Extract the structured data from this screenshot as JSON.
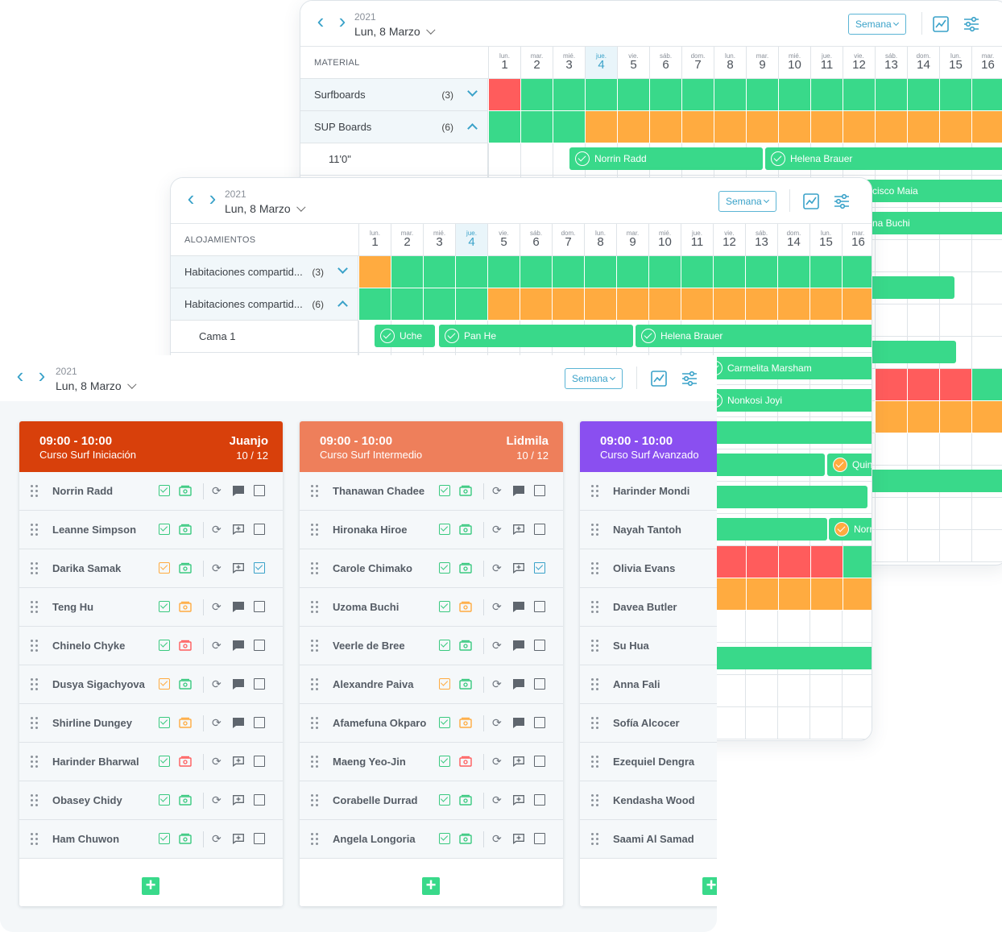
{
  "material_view": {
    "year": "2021",
    "date": "Lun, 8 Marzo",
    "view_select": "Semana",
    "section_title": "MATERIAL",
    "days": [
      {
        "dow": "lun.",
        "num": "1"
      },
      {
        "dow": "mar.",
        "num": "2"
      },
      {
        "dow": "mié.",
        "num": "3"
      },
      {
        "dow": "jue.",
        "num": "4"
      },
      {
        "dow": "vie.",
        "num": "5"
      },
      {
        "dow": "sáb.",
        "num": "6"
      },
      {
        "dow": "dom.",
        "num": "7"
      },
      {
        "dow": "lun.",
        "num": "8"
      },
      {
        "dow": "mar.",
        "num": "9"
      },
      {
        "dow": "mié.",
        "num": "10"
      },
      {
        "dow": "jue.",
        "num": "11"
      },
      {
        "dow": "vie.",
        "num": "12"
      },
      {
        "dow": "sáb.",
        "num": "13"
      },
      {
        "dow": "dom.",
        "num": "14"
      },
      {
        "dow": "lun.",
        "num": "15"
      },
      {
        "dow": "mar.",
        "num": "16"
      }
    ],
    "groups": [
      {
        "label": "Surfboards",
        "count": "(3)",
        "availability": "rggggggggggggggg"
      },
      {
        "label": "SUP Boards",
        "count": "(6)",
        "availability": "gggooooooooooooo"
      }
    ],
    "subrow_label": "11'0\"",
    "bookings": [
      "Norrin Radd",
      "Helena Brauer"
    ],
    "partial_labels": [
      "cisco Maia",
      "na Buchi"
    ]
  },
  "lodging_view": {
    "year": "2021",
    "date": "Lun, 8 Marzo",
    "view_select": "Semana",
    "section_title": "ALOJAMIENTOS",
    "groups": [
      {
        "label": "Habitaciones compartid...",
        "count": "(3)",
        "availability": "oggggggggggggggg"
      },
      {
        "label": "Habitaciones compartid...",
        "count": "(6)",
        "availability": "ggggoooooooooooo"
      }
    ],
    "subrow_label": "Cama 1",
    "bookings": [
      "Uche",
      "Pan He",
      "Helena Brauer",
      "Carmelita Marsham",
      "Nonkosi Joyi",
      "Quin",
      "Norri"
    ]
  },
  "classes_view": {
    "year": "2021",
    "date": "Lun, 8 Marzo",
    "view_select": "Semana",
    "classes": [
      {
        "time": "09:00 - 10:00",
        "name": "Curso Surf Iniciación",
        "coach": "Juanjo",
        "ratio": "10 / 12",
        "color": "#d8400b",
        "students": [
          {
            "name": "Norrin Radd",
            "attend": "ok",
            "pay": "ok",
            "comment": "filled",
            "done": false
          },
          {
            "name": "Leanne Simpson",
            "attend": "ok",
            "pay": "ok",
            "comment": "add",
            "done": false
          },
          {
            "name": "Darika Samak",
            "attend": "warn",
            "pay": "ok",
            "comment": "add",
            "done": true
          },
          {
            "name": "Teng Hu",
            "attend": "ok",
            "pay": "warn",
            "comment": "filled",
            "done": false
          },
          {
            "name": "Chinelo Chyke",
            "attend": "ok",
            "pay": "bad",
            "comment": "filled",
            "done": false
          },
          {
            "name": "Dusya Sigachyova",
            "attend": "warn",
            "pay": "ok",
            "comment": "filled",
            "done": false
          },
          {
            "name": "Shirline Dungey",
            "attend": "ok",
            "pay": "warn",
            "comment": "filled",
            "done": false
          },
          {
            "name": "Harinder Bharwal",
            "attend": "ok",
            "pay": "bad",
            "comment": "add",
            "done": false
          },
          {
            "name": "Obasey Chidy",
            "attend": "ok",
            "pay": "ok",
            "comment": "add",
            "done": false
          },
          {
            "name": "Ham Chuwon",
            "attend": "ok",
            "pay": "ok",
            "comment": "add",
            "done": false
          }
        ]
      },
      {
        "time": "09:00 - 10:00",
        "name": "Curso Surf Intermedio",
        "coach": "Lidmila",
        "ratio": "10 / 12",
        "color": "#ee7f5b",
        "students": [
          {
            "name": "Thanawan Chadee",
            "attend": "ok",
            "pay": "ok",
            "comment": "filled",
            "done": false
          },
          {
            "name": "Hironaka Hiroe",
            "attend": "ok",
            "pay": "ok",
            "comment": "add",
            "done": false
          },
          {
            "name": "Carole Chimako",
            "attend": "ok",
            "pay": "ok",
            "comment": "add",
            "done": true
          },
          {
            "name": "Uzoma Buchi",
            "attend": "ok",
            "pay": "warn",
            "comment": "filled",
            "done": false
          },
          {
            "name": "Veerle de Bree",
            "attend": "ok",
            "pay": "ok",
            "comment": "filled",
            "done": false
          },
          {
            "name": "Alexandre Paiva",
            "attend": "warn",
            "pay": "ok",
            "comment": "filled",
            "done": false
          },
          {
            "name": "Afamefuna Okparo",
            "attend": "ok",
            "pay": "warn",
            "comment": "filled",
            "done": false
          },
          {
            "name": "Maeng Yeo-Jin",
            "attend": "ok",
            "pay": "bad",
            "comment": "add",
            "done": false
          },
          {
            "name": "Corabelle Durrad",
            "attend": "ok",
            "pay": "ok",
            "comment": "add",
            "done": false
          },
          {
            "name": "Angela Longoria",
            "attend": "ok",
            "pay": "ok",
            "comment": "add",
            "done": false
          }
        ]
      },
      {
        "time": "09:00 - 10:00",
        "name": "Curso Surf Avanzado",
        "coach": "",
        "ratio": "",
        "color": "#8a4ff0",
        "students": [
          {
            "name": "Harinder Mondi"
          },
          {
            "name": "Nayah Tantoh"
          },
          {
            "name": "Olivia Evans"
          },
          {
            "name": "Davea Butler"
          },
          {
            "name": "Su Hua"
          },
          {
            "name": "Anna Fali"
          },
          {
            "name": "Sofía Alcocer"
          },
          {
            "name": "Ezequiel Dengra"
          },
          {
            "name": "Kendasha Wood"
          },
          {
            "name": "Saami Al Samad"
          }
        ]
      }
    ]
  },
  "colors": {
    "available": "#39d98a",
    "partial": "#ffab40",
    "full": "#ff5c5c",
    "accent": "#3aa2c9"
  }
}
